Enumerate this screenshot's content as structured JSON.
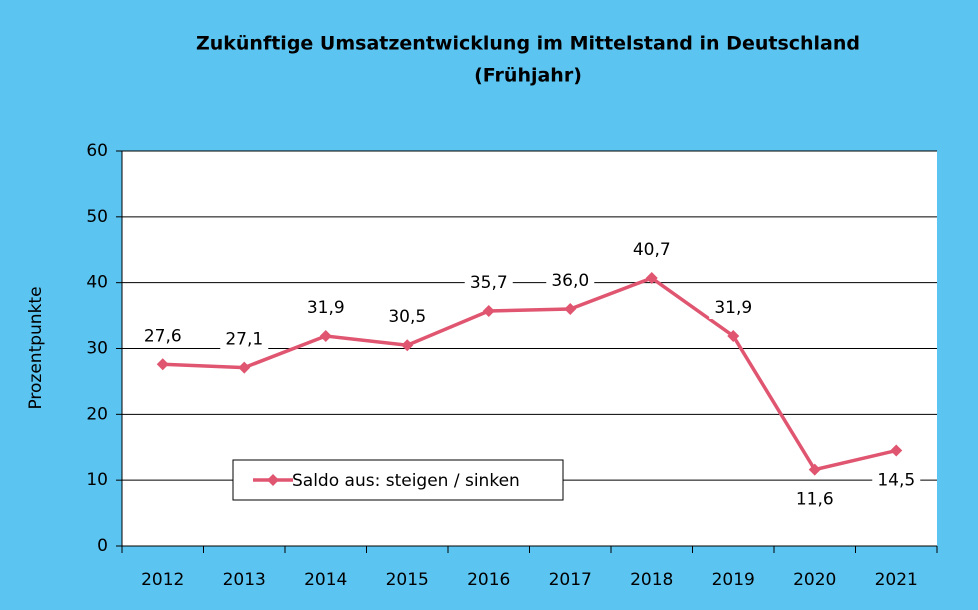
{
  "chart_data": {
    "type": "line",
    "title": [
      "Zukünftige Umsatzentwicklung im Mittelstand in Deutschland",
      "(Frühjahr)"
    ],
    "ylabel": "Prozentpunkte",
    "categories": [
      "2012",
      "2013",
      "2014",
      "2015",
      "2016",
      "2017",
      "2018",
      "2019",
      "2020",
      "2021"
    ],
    "series": [
      {
        "name": "Saldo aus: steigen / sinken",
        "color": "#e05570",
        "values": [
          27.6,
          27.1,
          31.9,
          30.5,
          35.7,
          36.0,
          40.7,
          31.9,
          11.6,
          14.5
        ],
        "value_labels": [
          "27,6",
          "27,1",
          "31,9",
          "30,5",
          "35,7",
          "36,0",
          "40,7",
          "31,9",
          "11,6",
          "14,5"
        ]
      }
    ],
    "ylim": [
      0,
      60
    ],
    "yticks": [
      0,
      10,
      20,
      30,
      40,
      50,
      60
    ],
    "grid": true
  }
}
